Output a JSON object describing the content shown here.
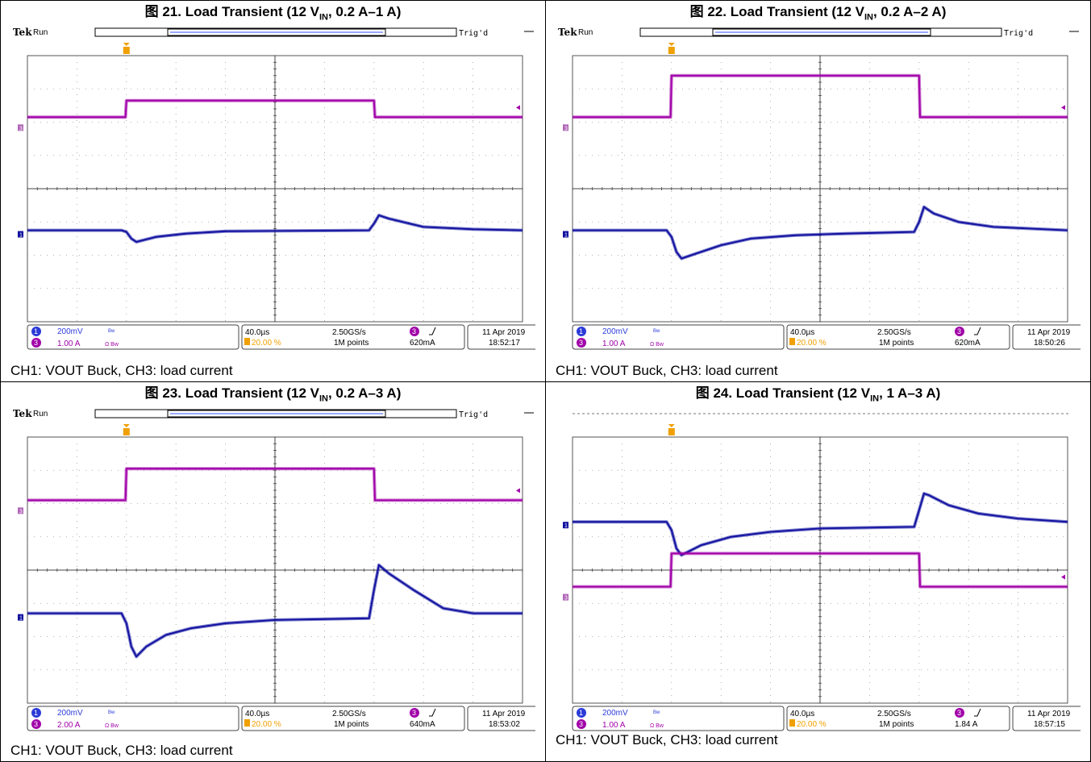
{
  "caption_text": "CH1: VOUT Buck, CH3: load current",
  "scope_labels": {
    "brand": "Tek",
    "run_state": "Run",
    "trigger_status": "Trig'd",
    "ch1_num": "1",
    "ch3_num": "3",
    "ch1_scale": "200mV",
    "bw_mark": "Bw",
    "ch3_coupling": "Ω Bw",
    "timebase": "40.0µs",
    "sample_rate": "2.50GS/s",
    "trigger_pos": "20.00 %",
    "record_length": "1M points"
  },
  "colors": {
    "ch1": "#1010a0",
    "ch3": "#a000a8",
    "trigger": "#f0a000",
    "grid": "#444444"
  },
  "panels": [
    {
      "fig_label": "图 21. Load Transient (12 V",
      "fig_sub": "IN",
      "fig_rest": ", 0.2 A–1 A)",
      "ch3_scale": "1.00 A",
      "trigger_level": "620mA",
      "date": "11 Apr 2019",
      "time": "18:52:17",
      "show_header": true
    },
    {
      "fig_label": "图 22. Load Transient (12 V",
      "fig_sub": "IN",
      "fig_rest": ", 0.2 A–2 A)",
      "ch3_scale": "1.00 A",
      "trigger_level": "620mA",
      "date": "11 Apr 2019",
      "time": "18:50:26",
      "show_header": true
    },
    {
      "fig_label": "图 23. Load Transient (12 V",
      "fig_sub": "IN",
      "fig_rest": ", 0.2 A–3 A)",
      "ch3_scale": "2.00 A",
      "trigger_level": "640mA",
      "date": "11 Apr 2019",
      "time": "18:53:02",
      "show_header": true
    },
    {
      "fig_label": "图 24. Load Transient (12 V",
      "fig_sub": "IN",
      "fig_rest": ", 1 A–3 A)",
      "ch3_scale": "1.00 A",
      "trigger_level": "1.84 A",
      "date": "11 Apr 2019",
      "time": "18:57:15",
      "show_header": false
    }
  ],
  "chart_data": [
    {
      "type": "line",
      "title": "图 21. Load Transient (12 VIN, 0.2 A–1 A)",
      "x_units": "div (40.0µs/div)",
      "xlim": [
        0,
        10
      ],
      "series": [
        {
          "name": "CH1: VOUT Buck",
          "x": [
            0,
            1.9,
            2.0,
            2.1,
            2.2,
            2.6,
            3.2,
            4,
            5,
            6,
            6.9,
            7.0,
            7.1,
            7.3,
            8,
            9,
            10
          ],
          "y": [
            5.25,
            5.25,
            5.3,
            5.5,
            5.6,
            5.45,
            5.35,
            5.28,
            5.27,
            5.26,
            5.25,
            5.05,
            4.8,
            4.9,
            5.15,
            5.22,
            5.25
          ]
        },
        {
          "name": "CH3: load current",
          "x": [
            0,
            1.98,
            2.0,
            7.0,
            7.02,
            10
          ],
          "y": [
            1.85,
            1.85,
            1.35,
            1.35,
            1.85,
            1.85
          ]
        }
      ]
    },
    {
      "type": "line",
      "title": "图 22. Load Transient (12 VIN, 0.2 A–2 A)",
      "x_units": "div (40.0µs/div)",
      "xlim": [
        0,
        10
      ],
      "series": [
        {
          "name": "CH1: VOUT Buck",
          "x": [
            0,
            1.9,
            2.0,
            2.1,
            2.2,
            2.5,
            3.0,
            3.6,
            4.5,
            5.5,
            6.9,
            7.0,
            7.1,
            7.3,
            7.8,
            8.5,
            10
          ],
          "y": [
            5.25,
            5.25,
            5.45,
            5.9,
            6.1,
            5.95,
            5.7,
            5.5,
            5.4,
            5.35,
            5.3,
            5.0,
            4.55,
            4.75,
            5.0,
            5.15,
            5.25
          ]
        },
        {
          "name": "CH3: load current",
          "x": [
            0,
            1.98,
            2.0,
            7.0,
            7.02,
            10
          ],
          "y": [
            1.85,
            1.85,
            0.6,
            0.6,
            1.85,
            1.85
          ]
        }
      ]
    },
    {
      "type": "line",
      "title": "图 23. Load Transient (12 VIN, 0.2 A–3 A)",
      "x_units": "div (40.0µs/div)",
      "xlim": [
        0,
        10
      ],
      "series": [
        {
          "name": "CH1: VOUT Buck",
          "x": [
            0,
            1.9,
            2.0,
            2.1,
            2.2,
            2.4,
            2.8,
            3.3,
            4,
            5,
            6.9,
            7.0,
            7.1,
            7.3,
            7.8,
            8.4,
            9,
            10
          ],
          "y": [
            5.3,
            5.3,
            5.6,
            6.3,
            6.6,
            6.3,
            5.95,
            5.75,
            5.6,
            5.5,
            5.45,
            4.6,
            3.85,
            4.1,
            4.6,
            5.15,
            5.3,
            5.3
          ]
        },
        {
          "name": "CH3: load current",
          "x": [
            0,
            1.98,
            2.0,
            7.0,
            7.02,
            10
          ],
          "y": [
            1.9,
            1.9,
            0.95,
            0.95,
            1.9,
            1.9
          ]
        }
      ]
    },
    {
      "type": "line",
      "title": "图 24. Load Transient (12 VIN, 1 A–3 A)",
      "x_units": "div (40.0µs/div)",
      "xlim": [
        0,
        10
      ],
      "series": [
        {
          "name": "CH1: VOUT Buck",
          "x": [
            0,
            1.9,
            2.0,
            2.1,
            2.2,
            2.6,
            3.2,
            4,
            5,
            6.9,
            7.0,
            7.1,
            7.2,
            7.6,
            8.2,
            9,
            10
          ],
          "y": [
            2.55,
            2.55,
            2.8,
            3.35,
            3.55,
            3.25,
            3.0,
            2.85,
            2.75,
            2.7,
            2.2,
            1.7,
            1.75,
            2.05,
            2.3,
            2.45,
            2.55
          ]
        },
        {
          "name": "CH3: load current",
          "x": [
            0,
            1.98,
            2.0,
            7.0,
            7.02,
            10
          ],
          "y": [
            4.5,
            4.5,
            3.5,
            3.5,
            4.5,
            4.5
          ]
        }
      ]
    }
  ]
}
